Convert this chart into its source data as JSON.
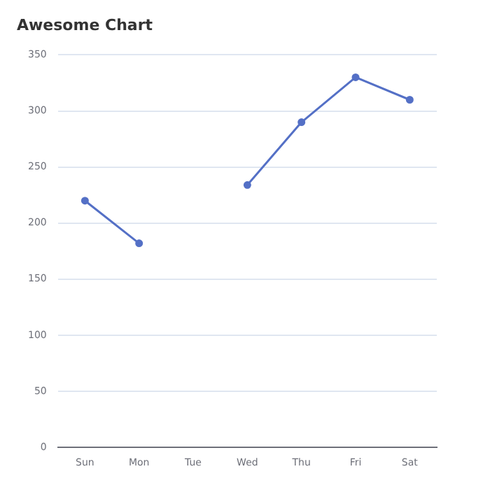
{
  "chart_data": {
    "type": "line",
    "title": "Awesome Chart",
    "categories": [
      "Sun",
      "Mon",
      "Tue",
      "Wed",
      "Thu",
      "Fri",
      "Sat"
    ],
    "series": [
      {
        "color": "#5470c6",
        "values": [
          220,
          182,
          null,
          234,
          290,
          330,
          310
        ]
      }
    ],
    "ylim": [
      0,
      350
    ],
    "yticks": [
      0,
      50,
      100,
      150,
      200,
      250,
      300,
      350
    ],
    "grid": "y",
    "marker": "circle",
    "line_style": "solid",
    "legend": false
  }
}
